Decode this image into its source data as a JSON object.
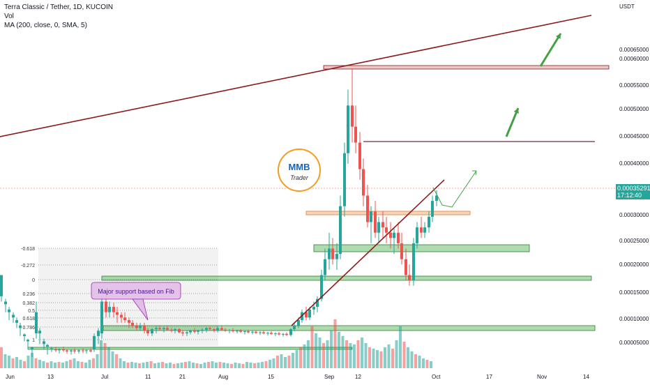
{
  "header": {
    "symbol_title": "Terra Classic / Tether, 1D, KUCOIN",
    "vol_label": "Vol",
    "ma_label": "MA (200, close, 0, SMA, 5)"
  },
  "price_axis": {
    "currency": "USDT",
    "ticks": [
      "0.00065000",
      "0.00060000",
      "0.00055000",
      "0.00050000",
      "0.00045000",
      "0.00040000",
      "0.00030000",
      "0.00025000",
      "0.00020000",
      "0.00015000",
      "0.00010000",
      "0.00005000"
    ],
    "current_price": "0.00035291",
    "countdown": "17:12:40"
  },
  "time_axis": {
    "ticks": [
      "Jun",
      "13",
      "Jul",
      "11",
      "21",
      "Aug",
      "15",
      "Sep",
      "12",
      "Oct",
      "17",
      "Nov",
      "14"
    ]
  },
  "fib_levels": [
    {
      "label": "-0.618"
    },
    {
      "label": "-0.272"
    },
    {
      "label": "0"
    },
    {
      "label": "0.236"
    },
    {
      "label": "0.382"
    },
    {
      "label": "0.5"
    },
    {
      "label": "0.618"
    },
    {
      "label": "0.786"
    },
    {
      "label": "1"
    }
  ],
  "annotation": {
    "text": "Major support based on Fib"
  },
  "logo": {
    "top": "MMB",
    "bottom": "Trader"
  },
  "colors": {
    "up": "#26a69a",
    "down": "#ef5350",
    "trendline": "#8b1a1a",
    "zone_green": "#4caf50",
    "zone_orange": "#f5a05a",
    "zone_red": "#c88a8a",
    "arrow_green": "#43a047",
    "price_tag": "#26a69a"
  },
  "chart_data": {
    "type": "candlestick",
    "symbol": "Terra Classic / Tether",
    "interval": "1D",
    "exchange": "KUCOIN",
    "y_range": [
      3e-05,
      0.00069
    ],
    "price_levels_marked": {
      "resistance_top": 0.000588,
      "resistance_mid": 0.000445,
      "resistance_orange": 0.000305,
      "support_green_1": 0.00024,
      "support_green_2": 0.000182,
      "support_green_3": 8.4e-05,
      "support_green_4": 4.5e-05
    }
  }
}
